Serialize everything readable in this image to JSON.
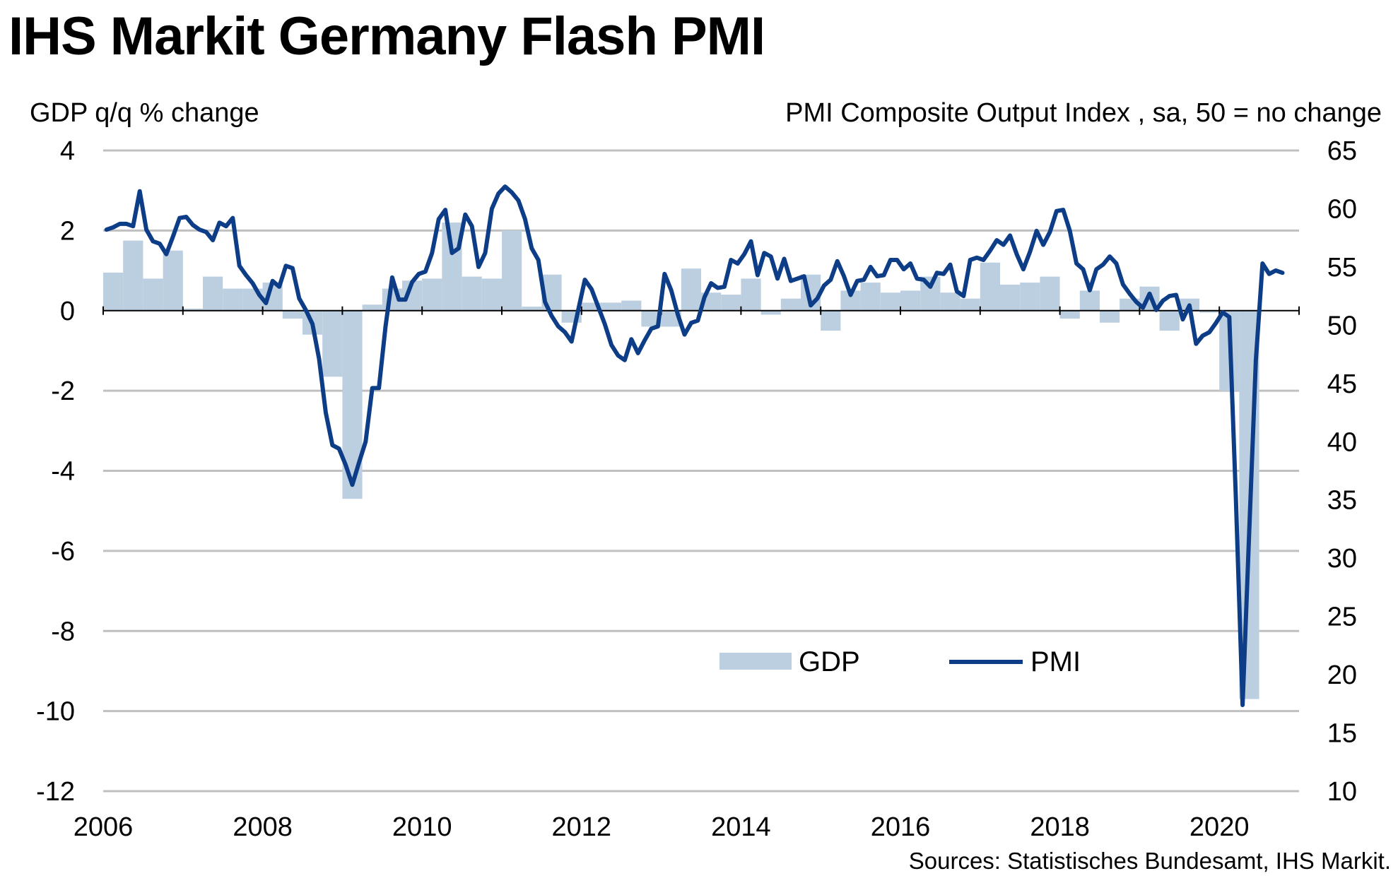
{
  "title": "IHS Markit Germany Flash PMI",
  "source": "Sources: Statistisches Bundesamt, IHS Markit.",
  "colors": {
    "gdp_bar": "#bccfe0",
    "pmi_line": "#0c3d86",
    "grid": "#c0c0c0",
    "axis": "#000000"
  },
  "chart_data": {
    "type": "bar+line",
    "x_ticks": [
      "2006",
      "2008",
      "2010",
      "2012",
      "2014",
      "2016",
      "2018",
      "2020"
    ],
    "y_left": {
      "label": "GDP q/q % change",
      "ticks": [
        "4",
        "2",
        "0",
        "-2",
        "-4",
        "-6",
        "-8",
        "-10",
        "-12"
      ],
      "range": [
        -12,
        4
      ]
    },
    "y_right": {
      "label": "PMI Composite Output Index , sa, 50 = no change",
      "ticks": [
        "65",
        "60",
        "55",
        "50",
        "45",
        "40",
        "35",
        "30",
        "25",
        "20",
        "15",
        "10"
      ],
      "range": [
        10,
        65
      ]
    },
    "grid": true,
    "legend": {
      "position": "bottom-center",
      "entries": [
        "GDP",
        "PMI"
      ]
    },
    "series": [
      {
        "name": "GDP",
        "type": "bar",
        "axis": "left",
        "x": [
          "2006-Q1",
          "2006-Q2",
          "2006-Q3",
          "2006-Q4",
          "2007-Q1",
          "2007-Q2",
          "2007-Q3",
          "2007-Q4",
          "2008-Q1",
          "2008-Q2",
          "2008-Q3",
          "2008-Q4",
          "2009-Q1",
          "2009-Q2",
          "2009-Q3",
          "2009-Q4",
          "2010-Q1",
          "2010-Q2",
          "2010-Q3",
          "2010-Q4",
          "2011-Q1",
          "2011-Q2",
          "2011-Q3",
          "2011-Q4",
          "2012-Q1",
          "2012-Q2",
          "2012-Q3",
          "2012-Q4",
          "2013-Q1",
          "2013-Q2",
          "2013-Q3",
          "2013-Q4",
          "2014-Q1",
          "2014-Q2",
          "2014-Q3",
          "2014-Q4",
          "2015-Q1",
          "2015-Q2",
          "2015-Q3",
          "2015-Q4",
          "2016-Q1",
          "2016-Q2",
          "2016-Q3",
          "2016-Q4",
          "2017-Q1",
          "2017-Q2",
          "2017-Q3",
          "2017-Q4",
          "2018-Q1",
          "2018-Q2",
          "2018-Q3",
          "2018-Q4",
          "2019-Q1",
          "2019-Q2",
          "2019-Q3",
          "2019-Q4",
          "2020-Q1",
          "2020-Q2"
        ],
        "values": [
          0.95,
          1.75,
          0.8,
          1.5,
          0.05,
          0.85,
          0.55,
          0.55,
          0.7,
          -0.2,
          -0.6,
          -1.65,
          -4.7,
          0.15,
          0.55,
          0.75,
          0.8,
          2.2,
          0.85,
          0.8,
          2.0,
          0.1,
          0.9,
          -0.3,
          0.2,
          0.2,
          0.25,
          -0.4,
          -0.4,
          1.05,
          0.45,
          0.4,
          0.8,
          -0.1,
          0.3,
          0.9,
          -0.5,
          0.5,
          0.7,
          0.45,
          0.5,
          0.85,
          0.45,
          0.3,
          1.2,
          0.65,
          0.7,
          0.85,
          -0.2,
          0.5,
          -0.3,
          0.3,
          0.6,
          -0.5,
          0.3,
          -0.05,
          -2.0,
          -9.7
        ]
      },
      {
        "name": "PMI",
        "type": "line",
        "axis": "right",
        "x": [
          "2006-01",
          "2006-02",
          "2006-03",
          "2006-04",
          "2006-05",
          "2006-06",
          "2006-07",
          "2006-08",
          "2006-09",
          "2006-10",
          "2006-11",
          "2006-12",
          "2007-01",
          "2007-02",
          "2007-03",
          "2007-04",
          "2007-05",
          "2007-06",
          "2007-07",
          "2007-08",
          "2007-09",
          "2007-10",
          "2007-11",
          "2007-12",
          "2008-01",
          "2008-02",
          "2008-03",
          "2008-04",
          "2008-05",
          "2008-06",
          "2008-07",
          "2008-08",
          "2008-09",
          "2008-10",
          "2008-11",
          "2008-12",
          "2009-01",
          "2009-02",
          "2009-03",
          "2009-04",
          "2009-05",
          "2009-06",
          "2009-07",
          "2009-08",
          "2009-09",
          "2009-10",
          "2009-11",
          "2009-12",
          "2010-01",
          "2010-02",
          "2010-03",
          "2010-04",
          "2010-05",
          "2010-06",
          "2010-07",
          "2010-08",
          "2010-09",
          "2010-10",
          "2010-11",
          "2010-12",
          "2011-01",
          "2011-02",
          "2011-03",
          "2011-04",
          "2011-05",
          "2011-06",
          "2011-07",
          "2011-08",
          "2011-09",
          "2011-10",
          "2011-11",
          "2011-12",
          "2012-01",
          "2012-02",
          "2012-03",
          "2012-04",
          "2012-05",
          "2012-06",
          "2012-07",
          "2012-08",
          "2012-09",
          "2012-10",
          "2012-11",
          "2012-12",
          "2013-01",
          "2013-02",
          "2013-03",
          "2013-04",
          "2013-05",
          "2013-06",
          "2013-07",
          "2013-08",
          "2013-09",
          "2013-10",
          "2013-11",
          "2013-12",
          "2014-01",
          "2014-02",
          "2014-03",
          "2014-04",
          "2014-05",
          "2014-06",
          "2014-07",
          "2014-08",
          "2014-09",
          "2014-10",
          "2014-11",
          "2014-12",
          "2015-01",
          "2015-02",
          "2015-03",
          "2015-04",
          "2015-05",
          "2015-06",
          "2015-07",
          "2015-08",
          "2015-09",
          "2015-10",
          "2015-11",
          "2015-12",
          "2016-01",
          "2016-02",
          "2016-03",
          "2016-04",
          "2016-05",
          "2016-06",
          "2016-07",
          "2016-08",
          "2016-09",
          "2016-10",
          "2016-11",
          "2016-12",
          "2017-01",
          "2017-02",
          "2017-03",
          "2017-04",
          "2017-05",
          "2017-06",
          "2017-07",
          "2017-08",
          "2017-09",
          "2017-10",
          "2017-11",
          "2017-12",
          "2018-01",
          "2018-02",
          "2018-03",
          "2018-04",
          "2018-05",
          "2018-06",
          "2018-07",
          "2018-08",
          "2018-09",
          "2018-10",
          "2018-11",
          "2018-12",
          "2019-01",
          "2019-02",
          "2019-03",
          "2019-04",
          "2019-05",
          "2019-06",
          "2019-07",
          "2019-08",
          "2019-09",
          "2019-10",
          "2019-11",
          "2019-12",
          "2020-01",
          "2020-02",
          "2020-03",
          "2020-04",
          "2020-05",
          "2020-06",
          "2020-07",
          "2020-08",
          "2020-09",
          "2020-10"
        ],
        "values": [
          58.2,
          58.4,
          58.7,
          58.7,
          58.5,
          61.5,
          58.2,
          57.2,
          57.0,
          56.1,
          57.6,
          59.2,
          59.3,
          58.6,
          58.2,
          58.0,
          57.3,
          58.8,
          58.5,
          59.2,
          55.1,
          54.3,
          53.6,
          52.6,
          51.9,
          53.8,
          53.3,
          55.1,
          54.9,
          52.3,
          51.3,
          50.1,
          47.1,
          42.5,
          39.7,
          39.4,
          38.0,
          36.3,
          38.2,
          40.0,
          44.6,
          44.6,
          49.9,
          54.1,
          52.2,
          52.2,
          53.7,
          54.4,
          54.6,
          56.2,
          59.1,
          59.9,
          56.2,
          56.6,
          59.5,
          58.5,
          55.0,
          56.2,
          60.0,
          61.3,
          61.9,
          61.4,
          60.7,
          59.1,
          56.6,
          55.6,
          52.0,
          50.8,
          49.9,
          49.4,
          48.6,
          51.3,
          53.9,
          53.1,
          51.6,
          50.1,
          48.3,
          47.4,
          47.0,
          48.8,
          47.6,
          48.7,
          49.7,
          49.9,
          54.4,
          53.0,
          50.9,
          49.2,
          50.2,
          50.4,
          52.4,
          53.6,
          53.2,
          53.3,
          55.6,
          55.3,
          56.1,
          57.2,
          54.3,
          56.2,
          55.9,
          54.0,
          55.7,
          53.8,
          54.0,
          54.2,
          51.7,
          52.3,
          53.4,
          53.9,
          55.5,
          54.2,
          52.6,
          53.8,
          53.9,
          55.0,
          54.2,
          54.3,
          55.6,
          55.6,
          54.8,
          55.3,
          54.0,
          53.9,
          53.3,
          54.5,
          54.4,
          55.2,
          52.9,
          52.5,
          55.6,
          55.8,
          55.6,
          56.4,
          57.3,
          56.9,
          57.7,
          56.1,
          54.8,
          56.3,
          58.1,
          56.9,
          58.0,
          59.8,
          59.9,
          58.1,
          55.3,
          54.8,
          53.0,
          54.8,
          55.2,
          55.9,
          55.3,
          53.5,
          52.7,
          52.0,
          51.5,
          52.7,
          51.3,
          52.1,
          52.5,
          52.6,
          50.5,
          51.7,
          48.4,
          49.1,
          49.4,
          50.2,
          51.1,
          50.7,
          35.0,
          17.4,
          32.3,
          47.0,
          55.3,
          54.4,
          54.7,
          54.5
        ]
      }
    ]
  }
}
